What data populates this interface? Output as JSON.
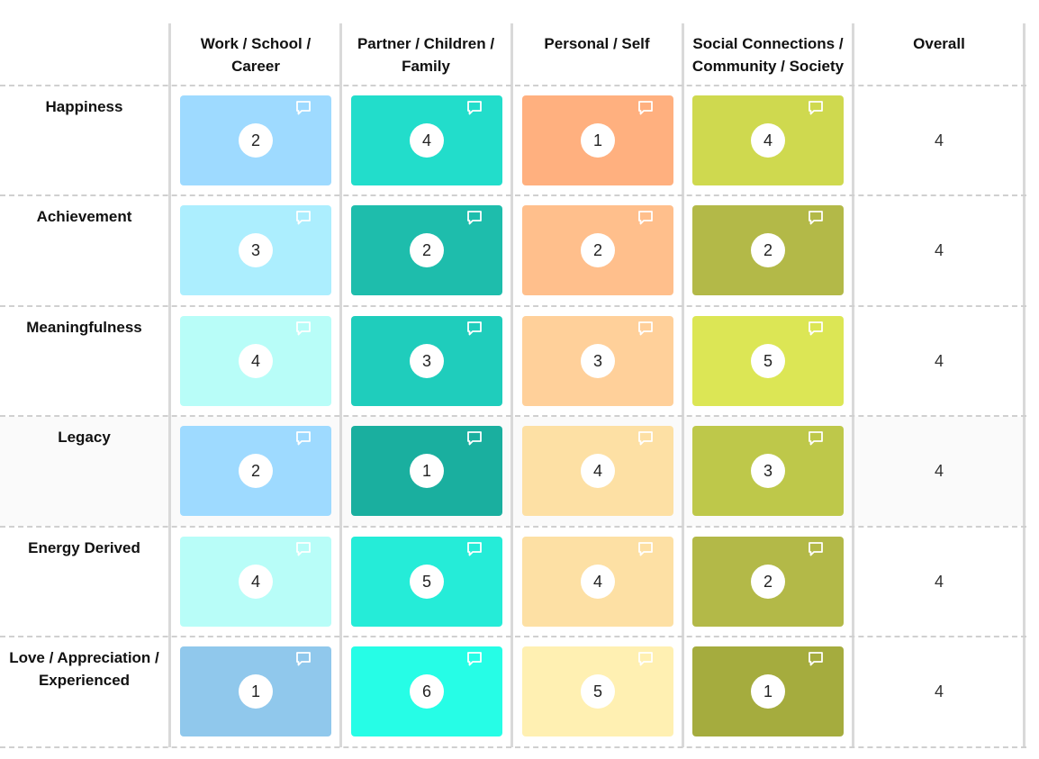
{
  "columns": [
    {
      "lines": [
        "Work / School /",
        "Career"
      ]
    },
    {
      "lines": [
        "Partner / Children /",
        "Family"
      ]
    },
    {
      "lines": [
        "Personal / Self"
      ]
    },
    {
      "lines": [
        "Social Connections /",
        "Community / Society"
      ]
    },
    {
      "lines": [
        "Overall"
      ]
    }
  ],
  "rows": [
    {
      "lines": [
        "Happiness"
      ],
      "cells": [
        {
          "value": "2",
          "color": "#9edaff"
        },
        {
          "value": "4",
          "color": "#22ddcb"
        },
        {
          "value": "1",
          "color": "#ffb07f"
        },
        {
          "value": "4",
          "color": "#cfd94f"
        }
      ],
      "overall": "4"
    },
    {
      "lines": [
        "Achievement"
      ],
      "cells": [
        {
          "value": "3",
          "color": "#aceefe"
        },
        {
          "value": "2",
          "color": "#1ebdac"
        },
        {
          "value": "2",
          "color": "#ffbf8c"
        },
        {
          "value": "2",
          "color": "#b3b948"
        }
      ],
      "overall": "4"
    },
    {
      "lines": [
        "Meaningfulness"
      ],
      "cells": [
        {
          "value": "4",
          "color": "#b8fdf8"
        },
        {
          "value": "3",
          "color": "#1fcdbc"
        },
        {
          "value": "3",
          "color": "#ffd09a"
        },
        {
          "value": "5",
          "color": "#dce655"
        }
      ],
      "overall": "4"
    },
    {
      "lines": [
        "Legacy"
      ],
      "cells": [
        {
          "value": "2",
          "color": "#9edaff"
        },
        {
          "value": "1",
          "color": "#1aaf9f"
        },
        {
          "value": "4",
          "color": "#fde0a4"
        },
        {
          "value": "3",
          "color": "#bec84a"
        }
      ],
      "overall": "4",
      "highlighted": true
    },
    {
      "lines": [
        "Energy Derived"
      ],
      "cells": [
        {
          "value": "4",
          "color": "#b8fdf8"
        },
        {
          "value": "5",
          "color": "#25ecd8"
        },
        {
          "value": "4",
          "color": "#fde0a4"
        },
        {
          "value": "2",
          "color": "#b3b948"
        }
      ],
      "overall": "4"
    },
    {
      "lines": [
        "Love / Appreciation /",
        "Experienced"
      ],
      "cells": [
        {
          "value": "1",
          "color": "#90c8ec"
        },
        {
          "value": "6",
          "color": "#26fde6"
        },
        {
          "value": "5",
          "color": "#fff0b2"
        },
        {
          "value": "1",
          "color": "#a5ac3e"
        }
      ],
      "overall": "4"
    }
  ],
  "icon": "comment-icon"
}
